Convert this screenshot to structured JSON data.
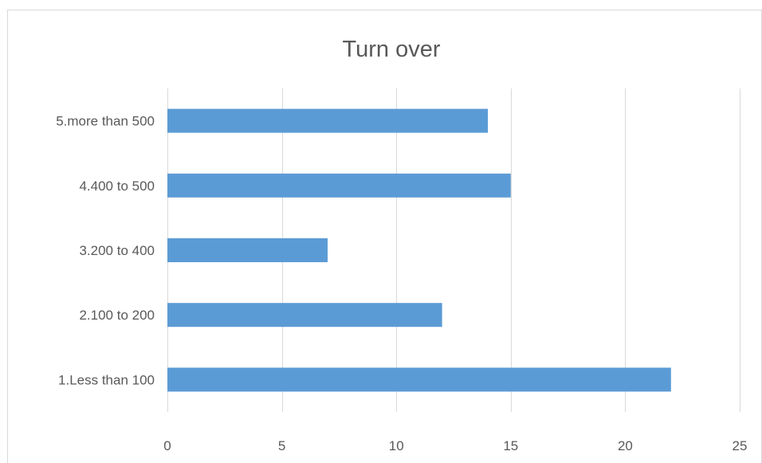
{
  "chart_data": {
    "type": "bar",
    "orientation": "horizontal",
    "title": "Turn over",
    "categories": [
      "1.Less than 100",
      "2.100 to 200",
      "3.200 to 400",
      "4.400 to 500",
      "5.more than 500"
    ],
    "values": [
      22,
      12,
      7,
      15,
      14
    ],
    "xlim": [
      0,
      25
    ],
    "x_ticks": [
      0,
      5,
      10,
      15,
      20,
      25
    ],
    "xlabel": "",
    "ylabel": "",
    "grid": true,
    "legend": "none",
    "bar_color": "#5b9bd5",
    "grid_color": "#d9d9d9",
    "text_color": "#595959"
  }
}
